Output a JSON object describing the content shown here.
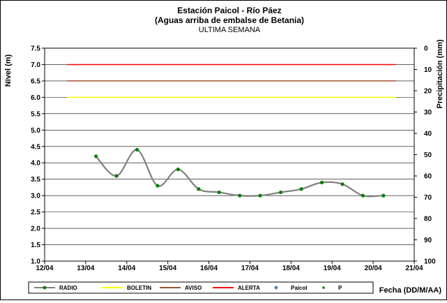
{
  "chart_data": {
    "type": "line",
    "title_lines": [
      "Estación Paicol  - Río Páez",
      "(Aguas arriba de embalse de Betania)"
    ],
    "subtitle": "ULTIMA SEMANA",
    "ylabel": "Nivel (m)",
    "y2label": "Precipitación (mm)",
    "xlabel": "Fecha (DD/M/AA)",
    "x_ticks": [
      "12/04",
      "13/04",
      "14/04",
      "15/04",
      "16/04",
      "17/04",
      "18/04",
      "19/04",
      "20/04",
      "21/04"
    ],
    "y_ticks": [
      "1.0",
      "1.5",
      "2.0",
      "2.5",
      "3.0",
      "3.5",
      "4.0",
      "4.5",
      "5.0",
      "5.5",
      "6.0",
      "6.5",
      "7.0",
      "7.5"
    ],
    "y2_ticks": [
      "0",
      "10",
      "20",
      "30",
      "40",
      "50",
      "60",
      "70",
      "80",
      "90",
      "100"
    ],
    "ylim": [
      1.0,
      7.5
    ],
    "y2lim": [
      0,
      100
    ],
    "y2_inverted": true,
    "xlim": [
      0,
      9
    ],
    "grid": "horizontal",
    "thresholds": [
      {
        "name": "BOLETIN",
        "value": 6.0,
        "color": "#ffff00",
        "x_start": 0.55,
        "x_end": 8.55
      },
      {
        "name": "AVISO",
        "value": 6.5,
        "color": "#a0522d",
        "x_start": 0.55,
        "x_end": 8.55
      },
      {
        "name": "ALERTA",
        "value": 7.0,
        "color": "#ff0000",
        "x_start": 0.55,
        "x_end": 8.55
      }
    ],
    "series": [
      {
        "name": "RADIO",
        "color": "#808080",
        "marker_color": "#008000",
        "x": [
          1.25,
          1.75,
          2.25,
          2.75,
          3.25,
          3.75,
          4.25,
          4.75,
          5.25,
          5.75,
          6.25,
          6.75,
          7.25,
          7.75,
          8.25
        ],
        "values": [
          4.2,
          3.6,
          4.4,
          3.3,
          3.8,
          3.2,
          3.1,
          3.0,
          3.0,
          3.1,
          3.2,
          3.4,
          3.35,
          3.0,
          3.0
        ]
      }
    ],
    "legend": {
      "placement": "bottom",
      "items": [
        {
          "label": "RADIO",
          "kind": "line-marker",
          "color": "#808080",
          "marker": "#008000"
        },
        {
          "label": "BOLETIN",
          "kind": "line",
          "color": "#ffff00"
        },
        {
          "label": "AVISO",
          "kind": "line",
          "color": "#a0522d"
        },
        {
          "label": "ALERTA",
          "kind": "line",
          "color": "#ff0000"
        },
        {
          "label": "Paicol",
          "kind": "diamond",
          "color": "#4682b4"
        },
        {
          "label": "P",
          "kind": "dot",
          "color": "#008000"
        }
      ]
    }
  }
}
